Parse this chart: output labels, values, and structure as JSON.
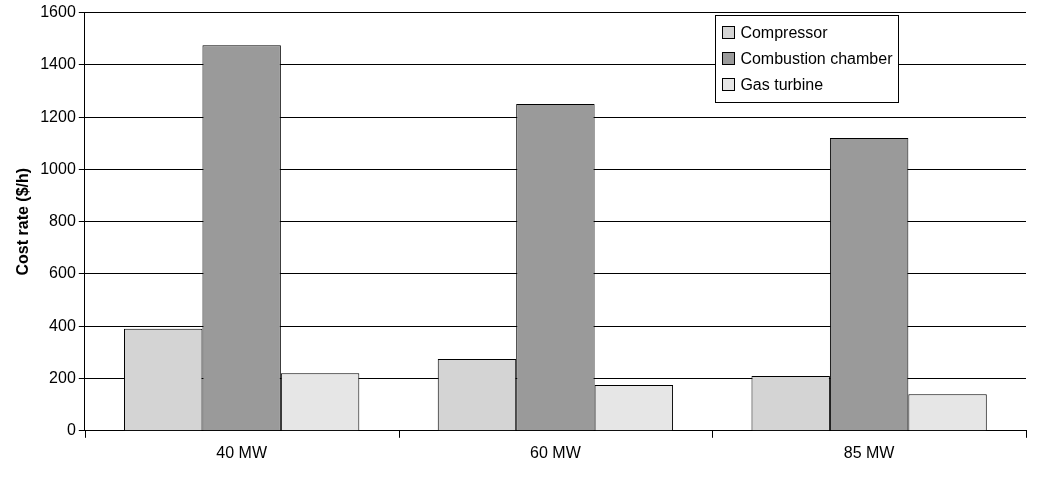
{
  "chart_data": {
    "type": "bar",
    "ylabel": "Cost rate ($/h)",
    "categories": [
      "40 MW",
      "60 MW",
      "85 MW"
    ],
    "series": [
      {
        "name": "Compressor",
        "color": "#d4d4d4",
        "values": [
          390,
          275,
          210
        ]
      },
      {
        "name": "Combustion chamber",
        "color": "#9a9a9a",
        "values": [
          1475,
          1250,
          1120
        ]
      },
      {
        "name": "Gas turbine",
        "color": "#e6e6e6",
        "values": [
          220,
          175,
          140
        ]
      }
    ],
    "ylim": [
      0,
      1600
    ],
    "yticks": [
      0,
      200,
      400,
      600,
      800,
      1000,
      1200,
      1400,
      1600
    ],
    "grid": "y",
    "legend": "top right"
  }
}
